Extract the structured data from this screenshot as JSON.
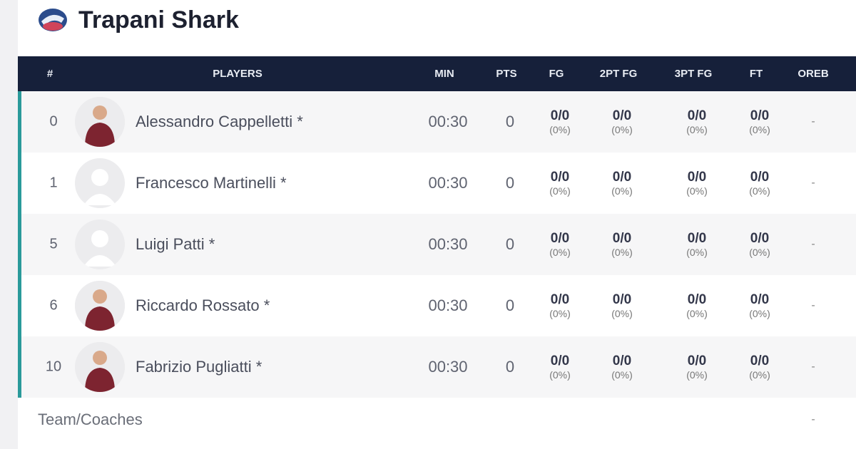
{
  "team": {
    "name": "Trapani Shark",
    "logo": "trapani-shark-logo"
  },
  "columns": [
    "#",
    "PLAYERS",
    "MIN",
    "PTS",
    "FG",
    "2PT FG",
    "3PT FG",
    "FT",
    "OREB"
  ],
  "accent": "#2a9a9a",
  "header_bg": "#16203a",
  "players": [
    {
      "num": "0",
      "name": "Alessandro Cappelletti *",
      "photo": true,
      "min": "00:30",
      "pts": "0",
      "fg": "0/0",
      "fg_pct": "(0%)",
      "fg2": "0/0",
      "fg2_pct": "(0%)",
      "fg3": "0/0",
      "fg3_pct": "(0%)",
      "ft": "0/0",
      "ft_pct": "(0%)",
      "oreb": "-"
    },
    {
      "num": "1",
      "name": "Francesco Martinelli *",
      "photo": false,
      "min": "00:30",
      "pts": "0",
      "fg": "0/0",
      "fg_pct": "(0%)",
      "fg2": "0/0",
      "fg2_pct": "(0%)",
      "fg3": "0/0",
      "fg3_pct": "(0%)",
      "ft": "0/0",
      "ft_pct": "(0%)",
      "oreb": "-"
    },
    {
      "num": "5",
      "name": "Luigi Patti *",
      "photo": false,
      "min": "00:30",
      "pts": "0",
      "fg": "0/0",
      "fg_pct": "(0%)",
      "fg2": "0/0",
      "fg2_pct": "(0%)",
      "fg3": "0/0",
      "fg3_pct": "(0%)",
      "ft": "0/0",
      "ft_pct": "(0%)",
      "oreb": "-"
    },
    {
      "num": "6",
      "name": "Riccardo Rossato *",
      "photo": true,
      "min": "00:30",
      "pts": "0",
      "fg": "0/0",
      "fg_pct": "(0%)",
      "fg2": "0/0",
      "fg2_pct": "(0%)",
      "fg3": "0/0",
      "fg3_pct": "(0%)",
      "ft": "0/0",
      "ft_pct": "(0%)",
      "oreb": "-"
    },
    {
      "num": "10",
      "name": "Fabrizio Pugliatti *",
      "photo": true,
      "min": "00:30",
      "pts": "0",
      "fg": "0/0",
      "fg_pct": "(0%)",
      "fg2": "0/0",
      "fg2_pct": "(0%)",
      "fg3": "0/0",
      "fg3_pct": "(0%)",
      "ft": "0/0",
      "ft_pct": "(0%)",
      "oreb": "-"
    }
  ],
  "team_row": {
    "label": "Team/Coaches",
    "oreb": "-"
  }
}
